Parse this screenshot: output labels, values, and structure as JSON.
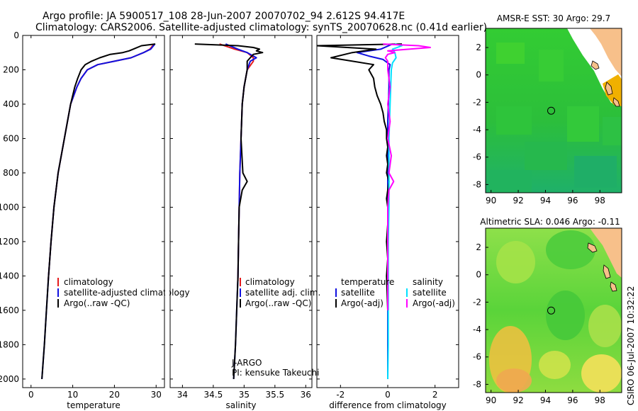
{
  "header": {
    "line1": "Argo profile: JA 5900517_108 28-Jun-2007 20070702_94 2.612S 94.417E",
    "line2": "Climatology: CARS2006. Satellite-adjusted climatology: synTS_20070628.nc (0.41d earlier)"
  },
  "credit": "CSIRO 06-Jul-2007 10:32:22",
  "colors": {
    "climatology": "#e41a1c",
    "satellite": "#1010e0",
    "argo": "#000000",
    "salinity_sat": "#00e0ff",
    "salinity_argo": "#ff00ff"
  },
  "chart_data": [
    {
      "type": "line",
      "panel": "temperature",
      "xlabel": "temperature",
      "ylabel": "",
      "xlim": [
        -2,
        32
      ],
      "ylim": [
        2050,
        0
      ],
      "xticks": [
        0,
        10,
        20,
        30
      ],
      "yticks": [
        0,
        200,
        400,
        600,
        800,
        1000,
        1200,
        1400,
        1600,
        1800,
        2000
      ],
      "series": [
        {
          "name": "climatology",
          "color": "#e41a1c",
          "y": [
            50,
            80,
            100,
            130,
            150,
            170,
            200,
            250,
            300,
            400,
            600,
            800,
            1000,
            1200,
            1400,
            1430
          ],
          "x": [
            29.5,
            28.5,
            27,
            24,
            20,
            16,
            13.5,
            12,
            11,
            9.5,
            8,
            6.5,
            5.5,
            4.8,
            4.2,
            4.1
          ]
        },
        {
          "name": "satellite-adjusted climatology",
          "color": "#1010e0",
          "y": [
            50,
            80,
            100,
            130,
            150,
            170,
            200,
            250,
            300,
            400,
            600,
            800,
            1000,
            1200,
            1400,
            1600,
            1800,
            2000
          ],
          "x": [
            29.7,
            28.7,
            27,
            24,
            20,
            16,
            13.5,
            12,
            11,
            9.5,
            8,
            6.5,
            5.5,
            4.8,
            4.2,
            3.7,
            3.2,
            2.6
          ]
        },
        {
          "name": "Argo(..raw -QC)",
          "color": "#000000",
          "y": [
            50,
            60,
            75,
            90,
            100,
            110,
            130,
            150,
            170,
            200,
            250,
            300,
            400,
            600,
            800,
            1000,
            1200,
            1400,
            1600,
            1800,
            2000
          ],
          "x": [
            29.8,
            26.5,
            25,
            23.5,
            22,
            19,
            16.5,
            14.5,
            13,
            12,
            11.2,
            10.5,
            9.5,
            8,
            6.5,
            5.5,
            4.8,
            4.2,
            3.7,
            3.2,
            2.6
          ]
        }
      ]
    },
    {
      "type": "line",
      "panel": "salinity",
      "xlabel": "salinity",
      "ylabel": "",
      "xlim": [
        33.8,
        36.1
      ],
      "ylim": [
        2050,
        0
      ],
      "xticks": [
        34,
        34.5,
        35,
        35.5,
        36
      ],
      "series": [
        {
          "name": "climatology",
          "color": "#e41a1c",
          "y": [
            50,
            80,
            100,
            130,
            150,
            200,
            300,
            400,
            600,
            800,
            1000,
            1200,
            1400,
            1430
          ],
          "x": [
            34.6,
            34.85,
            35.05,
            35.15,
            35.15,
            35.05,
            35.0,
            34.97,
            34.95,
            34.93,
            34.92,
            34.91,
            34.9,
            34.9
          ]
        },
        {
          "name": "satellite adj. clim.",
          "color": "#1010e0",
          "y": [
            50,
            80,
            100,
            130,
            150,
            200,
            300,
            400,
            600,
            800,
            1000,
            1200,
            1400,
            1600,
            1800,
            2000
          ],
          "x": [
            34.7,
            34.9,
            35.05,
            35.2,
            35.1,
            35.05,
            35.0,
            34.97,
            34.95,
            34.93,
            34.92,
            34.91,
            34.9,
            34.88,
            34.86,
            34.83
          ]
        },
        {
          "name": "Argo(..raw -QC)",
          "color": "#000000",
          "y": [
            50,
            60,
            70,
            80,
            90,
            100,
            110,
            130,
            150,
            200,
            300,
            400,
            600,
            800,
            850,
            900,
            1000,
            1200,
            1400,
            1600,
            1800,
            2000
          ],
          "x": [
            34.2,
            34.9,
            35.15,
            35.25,
            35.2,
            35.3,
            35.15,
            35.1,
            35.05,
            35.05,
            35.0,
            34.97,
            34.95,
            34.98,
            35.05,
            34.97,
            34.92,
            34.91,
            34.9,
            34.88,
            34.86,
            34.83
          ]
        }
      ]
    },
    {
      "type": "line",
      "panel": "difference",
      "xlabel": "difference from climatology",
      "ylabel": "",
      "xlim": [
        -3,
        3
      ],
      "ylim": [
        2050,
        0
      ],
      "xticks": [
        -2,
        0,
        2
      ],
      "series": [
        {
          "name": "temperature satellite",
          "color": "#1010e0",
          "y": [
            50,
            80,
            100,
            120,
            140,
            170,
            200,
            300,
            500,
            700,
            900,
            1100,
            1300,
            1500,
            1700,
            2000
          ],
          "x": [
            0.2,
            -0.3,
            -1.3,
            -0.8,
            -0.2,
            0.1,
            0.05,
            0.05,
            0.0,
            0.0,
            0.0,
            0.0,
            0.0,
            0.0,
            0.0,
            0.0
          ]
        },
        {
          "name": "temperature Argo(-adj)",
          "color": "#000000",
          "y": [
            50,
            60,
            80,
            100,
            130,
            170,
            200,
            250,
            300,
            350,
            400,
            450,
            500,
            550,
            600,
            650,
            700,
            750,
            800,
            850,
            900,
            950,
            1000,
            1100,
            1200,
            1300,
            1400,
            1600
          ],
          "x": [
            0.6,
            -3.0,
            -0.5,
            -1.5,
            -2.4,
            -0.6,
            -0.8,
            -0.6,
            -0.55,
            -0.45,
            -0.3,
            -0.2,
            -0.15,
            -0.05,
            -0.05,
            0.0,
            -0.05,
            0.0,
            -0.05,
            0.05,
            0.0,
            -0.05,
            0.0,
            0.0,
            -0.05,
            0.0,
            -0.05,
            0.0
          ]
        },
        {
          "name": "salinity satellite",
          "color": "#00e0ff",
          "y": [
            50,
            60,
            70,
            80,
            100,
            130,
            160,
            200,
            400,
            600,
            800,
            1000,
            1200,
            1400,
            1600,
            1800,
            2000
          ],
          "x": [
            0.3,
            0.6,
            0.4,
            0.2,
            0.3,
            0.35,
            0.2,
            0.15,
            0.1,
            0.05,
            0.05,
            0.05,
            0.02,
            0.02,
            0.02,
            0.02,
            0.0
          ]
        },
        {
          "name": "salinity Argo(-adj)",
          "color": "#ff00ff",
          "y": [
            50,
            60,
            70,
            80,
            90,
            100,
            110,
            130,
            150,
            200,
            300,
            400,
            500,
            600,
            700,
            800,
            850,
            900,
            1000,
            1100,
            1200,
            1400,
            1600
          ],
          "x": [
            -0.2,
            1.3,
            1.8,
            0.9,
            0.0,
            0.3,
            0.0,
            -0.1,
            0.0,
            0.0,
            0.1,
            0.0,
            0.1,
            0.0,
            0.15,
            0.05,
            0.25,
            0.05,
            0.0,
            0.0,
            0.0,
            0.0,
            0.0
          ]
        }
      ]
    },
    {
      "type": "heatmap",
      "panel": "sst-map",
      "title": "AMSR-E SST: 30 Argo: 29.7",
      "xlim": [
        89.6,
        99.6
      ],
      "ylim": [
        -8.6,
        3.4
      ],
      "xticks": [
        90,
        92,
        94,
        96,
        98
      ],
      "yticks": [
        2,
        0,
        -2,
        -4,
        -6,
        -8
      ],
      "profile": {
        "lon": 94.417,
        "lat": -2.612
      }
    },
    {
      "type": "heatmap",
      "panel": "sla-map",
      "title": "Altimetric SLA: 0.046 Argo: -0.11",
      "xlim": [
        89.6,
        99.6
      ],
      "ylim": [
        -8.6,
        3.4
      ],
      "xticks": [
        90,
        92,
        94,
        96,
        98
      ],
      "yticks": [
        2,
        0,
        -2,
        -4,
        -6,
        -8
      ],
      "profile": {
        "lon": 94.417,
        "lat": -2.612
      }
    }
  ],
  "legends": {
    "temperature": [
      "climatology",
      "satellite-adjusted climatology",
      "Argo(..raw -QC)"
    ],
    "salinity": [
      "climatology",
      "satellite adj. clim.",
      "Argo(..raw -QC)"
    ],
    "difference_headers": [
      "temperature",
      "salinity"
    ],
    "difference_rows": [
      "satellite",
      "Argo(-adj)"
    ]
  },
  "annotation": {
    "program": "J-ARGO",
    "pi": "PI: kensuke Takeuchi"
  }
}
